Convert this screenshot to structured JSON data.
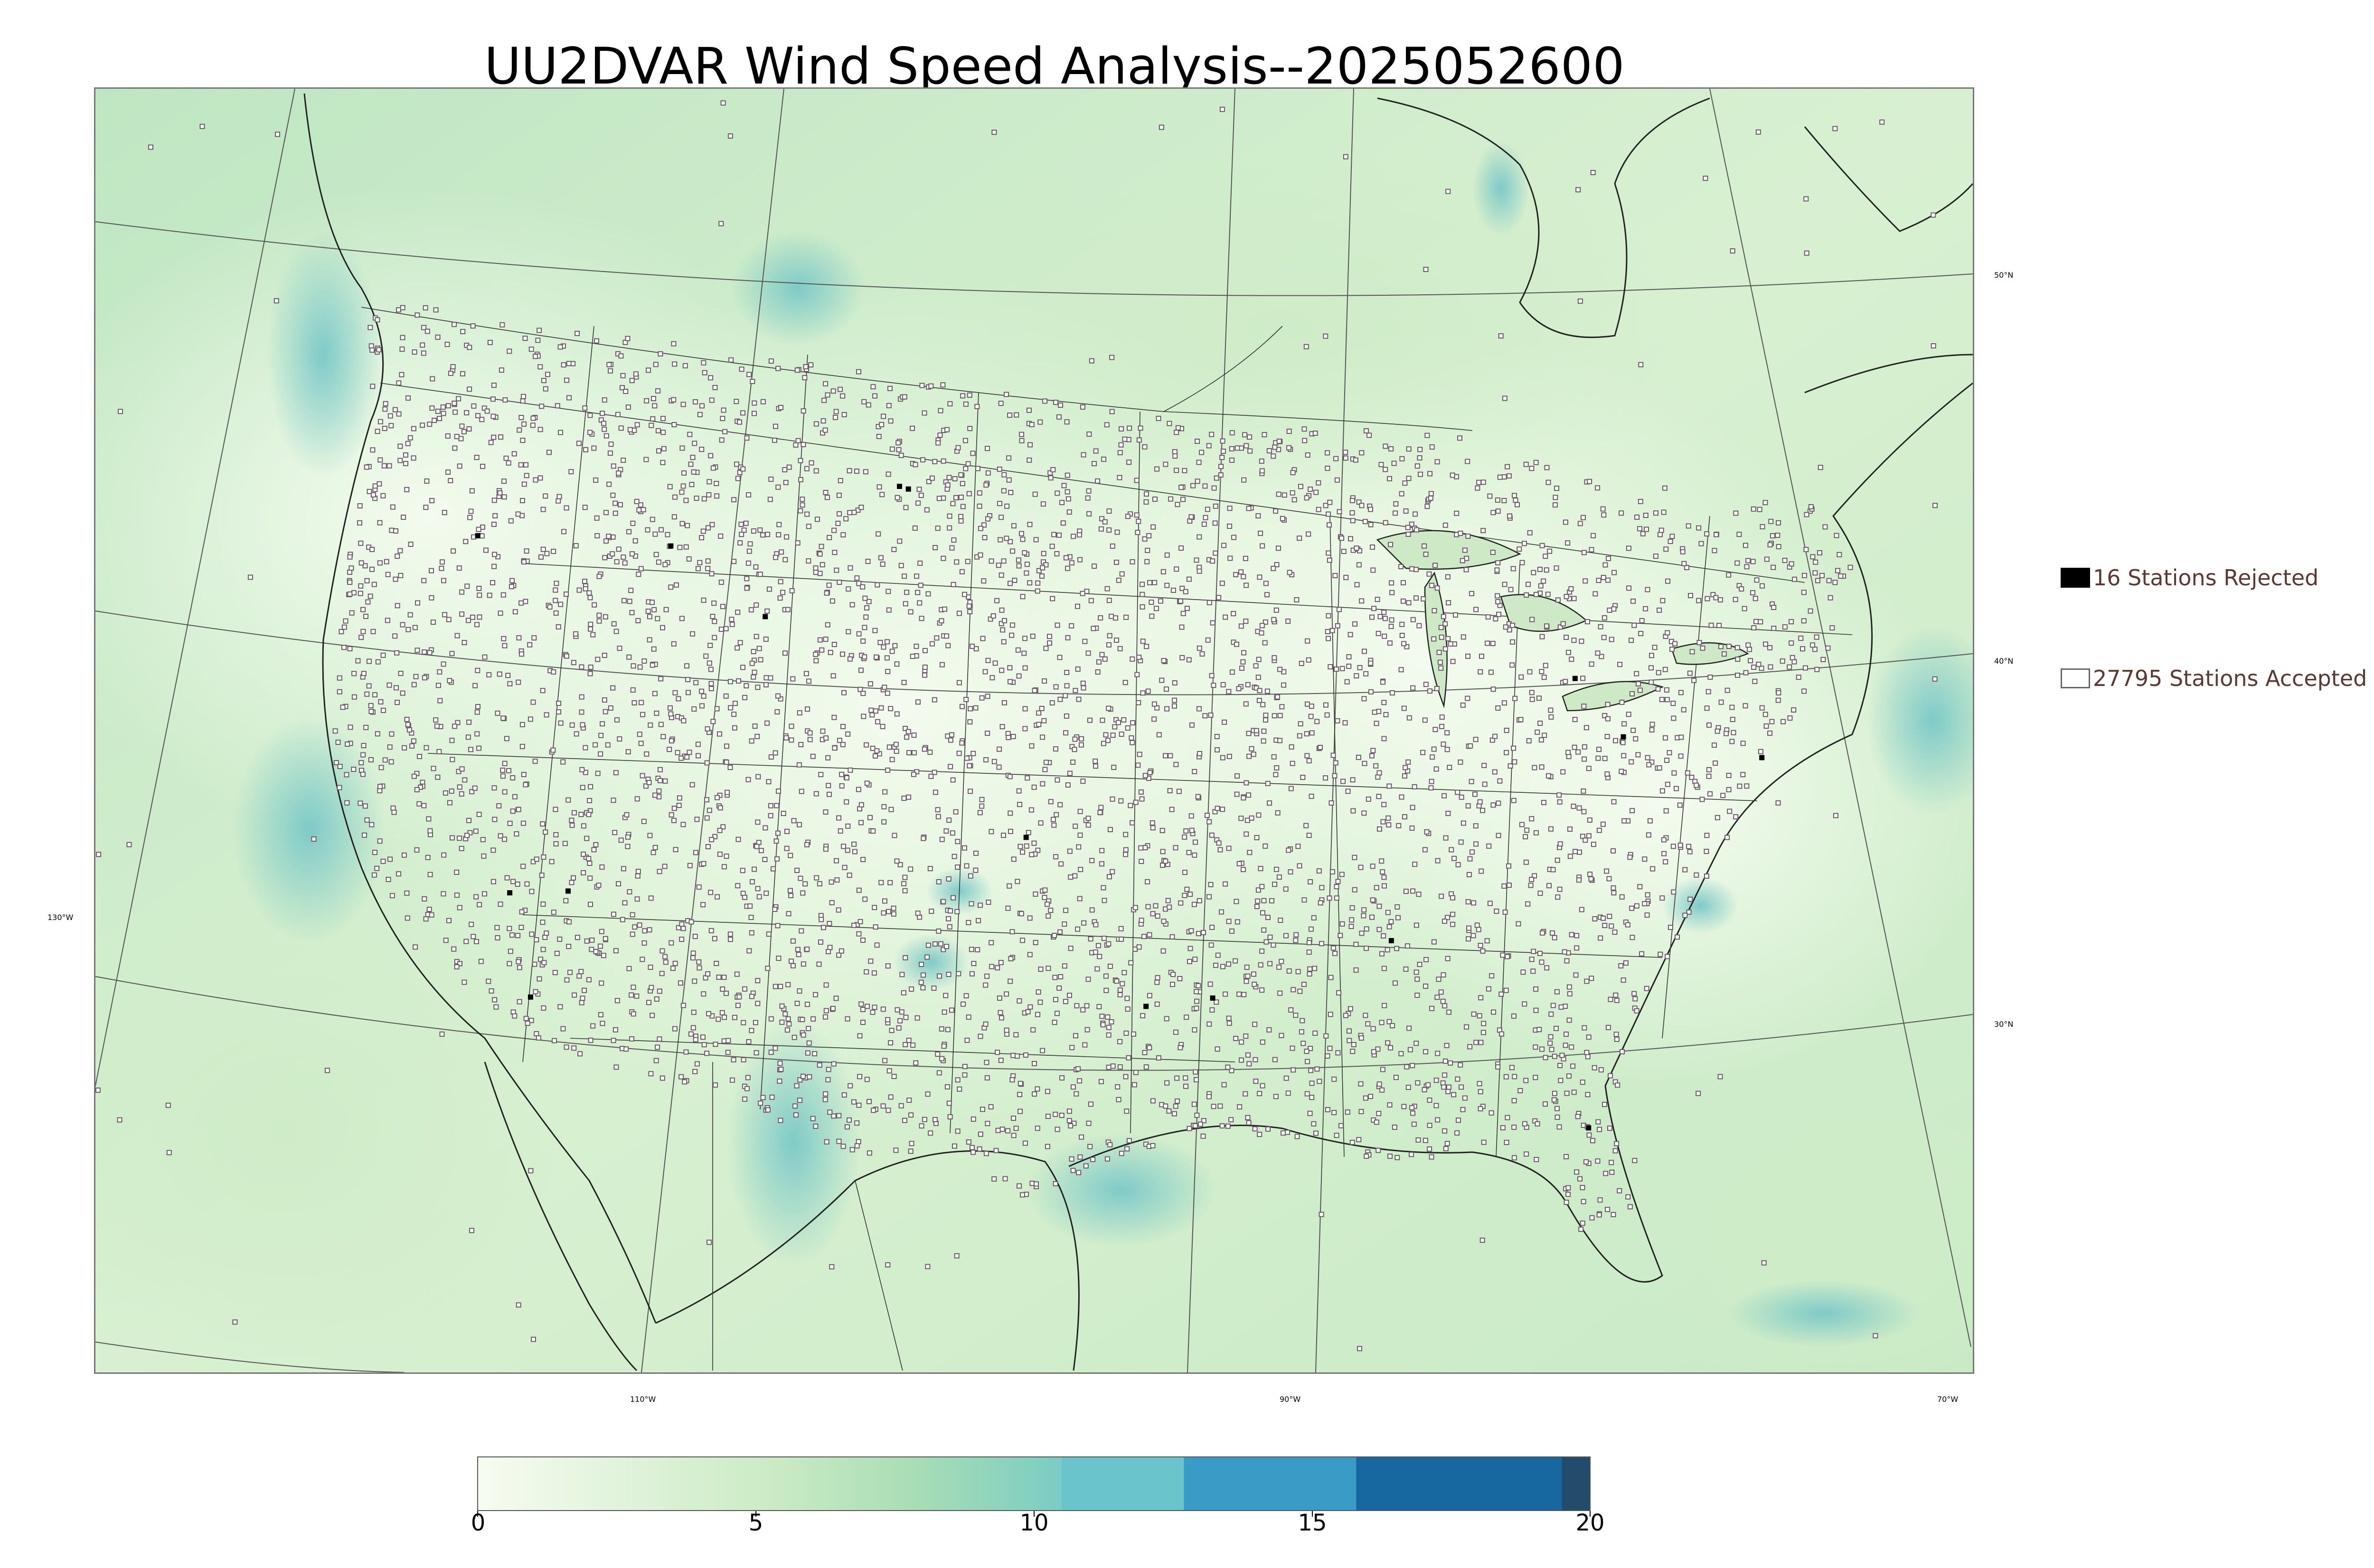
{
  "title": "UU2DVAR Wind Speed Analysis--2025052600",
  "map": {
    "graticule_lat_labels": [
      "50°N",
      "40°N",
      "30°N"
    ],
    "graticule_lon_labels": [
      "130°W",
      "110°W",
      "90°W",
      "70°W"
    ],
    "colors": {
      "land_low": "#eef8e6",
      "land_mid": "#cdebc4",
      "ocean_mid": "#a9dcb6",
      "high_wind": "#5fb6c9",
      "border": "#222222"
    }
  },
  "legend": {
    "rejected_label": "16 Stations Rejected",
    "accepted_label": "27795 Stations Accepted",
    "rejected_color": "#000000",
    "accepted_color": "#ffffff"
  },
  "colorbar": {
    "ticks": [
      "0",
      "5",
      "10",
      "15",
      "20"
    ],
    "range": [
      0,
      20
    ],
    "segments": [
      {
        "from": 0,
        "to": 10.5,
        "gradient": [
          "#f7fcf0",
          "#e0f3db",
          "#ccebc5",
          "#a8ddb5",
          "#7bccc4"
        ]
      },
      {
        "from": 10.5,
        "to": 12.7,
        "color": "#6ac4cc"
      },
      {
        "from": 12.7,
        "to": 15.8,
        "color": "#3a9bc7"
      },
      {
        "from": 15.8,
        "to": 19.5,
        "color": "#1768a0"
      },
      {
        "from": 19.5,
        "to": 20,
        "color": "#234b6b"
      }
    ]
  }
}
